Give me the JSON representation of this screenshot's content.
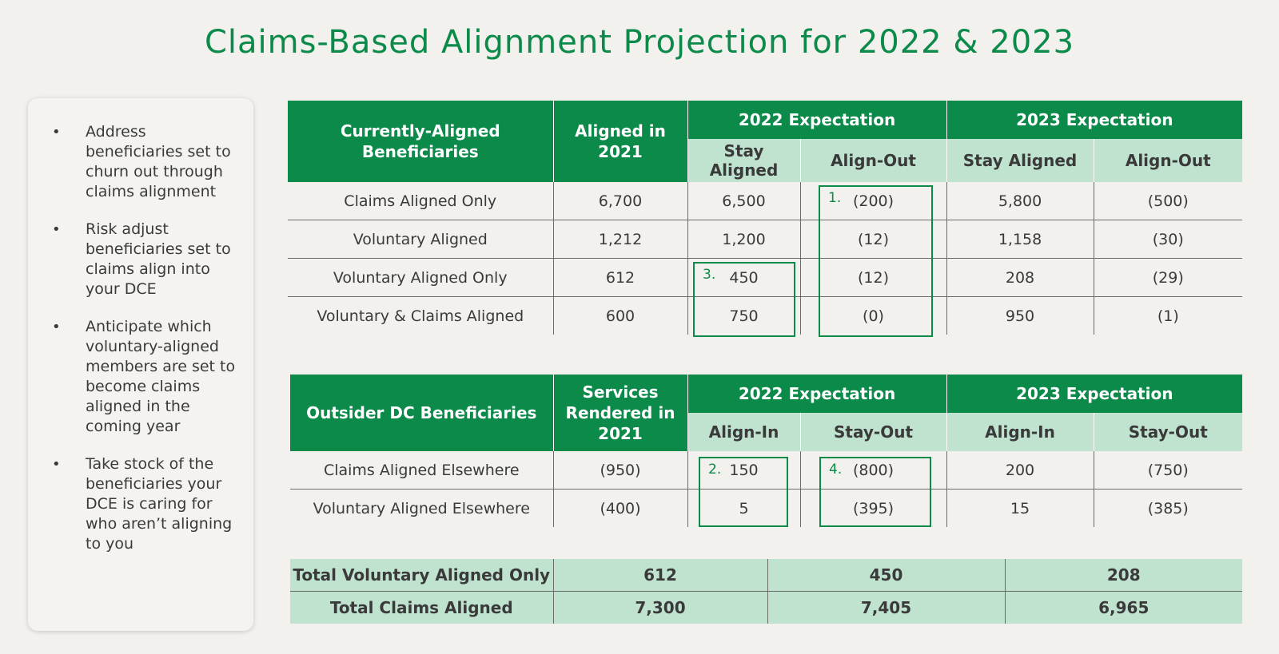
{
  "title": "Claims-Based Alignment Projection for 2022 & 2023",
  "sidebar": {
    "bullets": [
      "Address beneficiaries set to churn out through claims alignment",
      "Risk adjust beneficiaries set to claims align into your DCE",
      "Anticipate which voluntary-aligned members are set to become claims aligned in the coming year",
      "Take stock of the beneficiaries your DCE is caring for who aren’t aligning to you"
    ]
  },
  "table1": {
    "col1_header": "Currently-Aligned Beneficiaries",
    "col2_header": "Aligned in 2021",
    "group_2022": "2022 Expectation",
    "group_2023": "2023 Expectation",
    "sub_2022_a": "Stay Aligned",
    "sub_2022_b": "Align-Out",
    "sub_2023_a": "Stay Aligned",
    "sub_2023_b": "Align-Out",
    "rows": [
      [
        "Claims Aligned Only",
        "6,700",
        "6,500",
        "(200)",
        "5,800",
        "(500)"
      ],
      [
        "Voluntary Aligned",
        "1,212",
        "1,200",
        "(12)",
        "1,158",
        "(30)"
      ],
      [
        "Voluntary Aligned Only",
        "612",
        "450",
        "(12)",
        "208",
        "(29)"
      ],
      [
        "Voluntary & Claims Aligned",
        "600",
        "750",
        "(0)",
        "950",
        "(1)"
      ]
    ]
  },
  "table2": {
    "col1_header": "Outsider DC Beneficiaries",
    "col2_header": "Services Rendered in 2021",
    "group_2022": "2022 Expectation",
    "group_2023": "2023 Expectation",
    "sub_2022_a": "Align-In",
    "sub_2022_b": "Stay-Out",
    "sub_2023_a": "Align-In",
    "sub_2023_b": "Stay-Out",
    "rows": [
      [
        "Claims Aligned Elsewhere",
        "(950)",
        "150",
        "(800)",
        "200",
        "(750)"
      ],
      [
        "Voluntary Aligned Elsewhere",
        "(400)",
        "5",
        "(395)",
        "15",
        "(385)"
      ]
    ]
  },
  "totals": {
    "rows": [
      [
        "Total Voluntary Aligned Only",
        "612",
        "450",
        "208"
      ],
      [
        "Total Claims Aligned",
        "7,300",
        "7,405",
        "6,965"
      ]
    ]
  },
  "callouts": {
    "c1": "1.",
    "c2": "2.",
    "c3": "3.",
    "c4": "4."
  }
}
